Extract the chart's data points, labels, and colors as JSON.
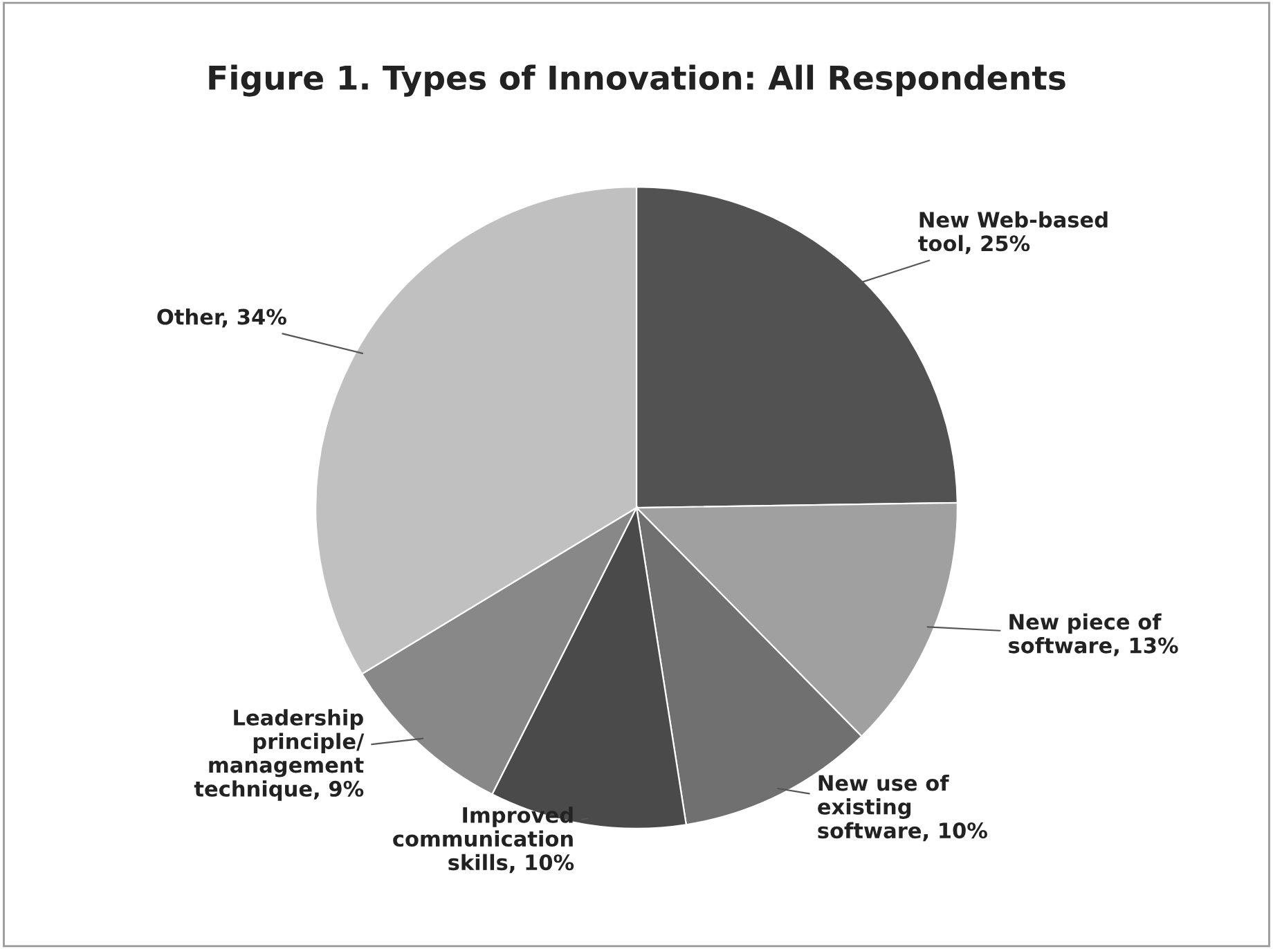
{
  "chart_data": {
    "type": "pie",
    "title": "Figure 1. Types of Innovation: All Respondents",
    "categories": [
      "New Web-based tool",
      "New piece of software",
      "New use of existing software",
      "Improved communication skills",
      "Leadership principle/ management technique",
      "Other"
    ],
    "values": [
      25,
      13,
      10,
      10,
      9,
      34
    ],
    "colors": [
      "#525252",
      "#a0a0a0",
      "#707070",
      "#4a4a4a",
      "#888888",
      "#c0c0c0"
    ],
    "value_labels": [
      "25%",
      "13%",
      "10%",
      "10%",
      "9%",
      "34%"
    ],
    "legend": false
  }
}
